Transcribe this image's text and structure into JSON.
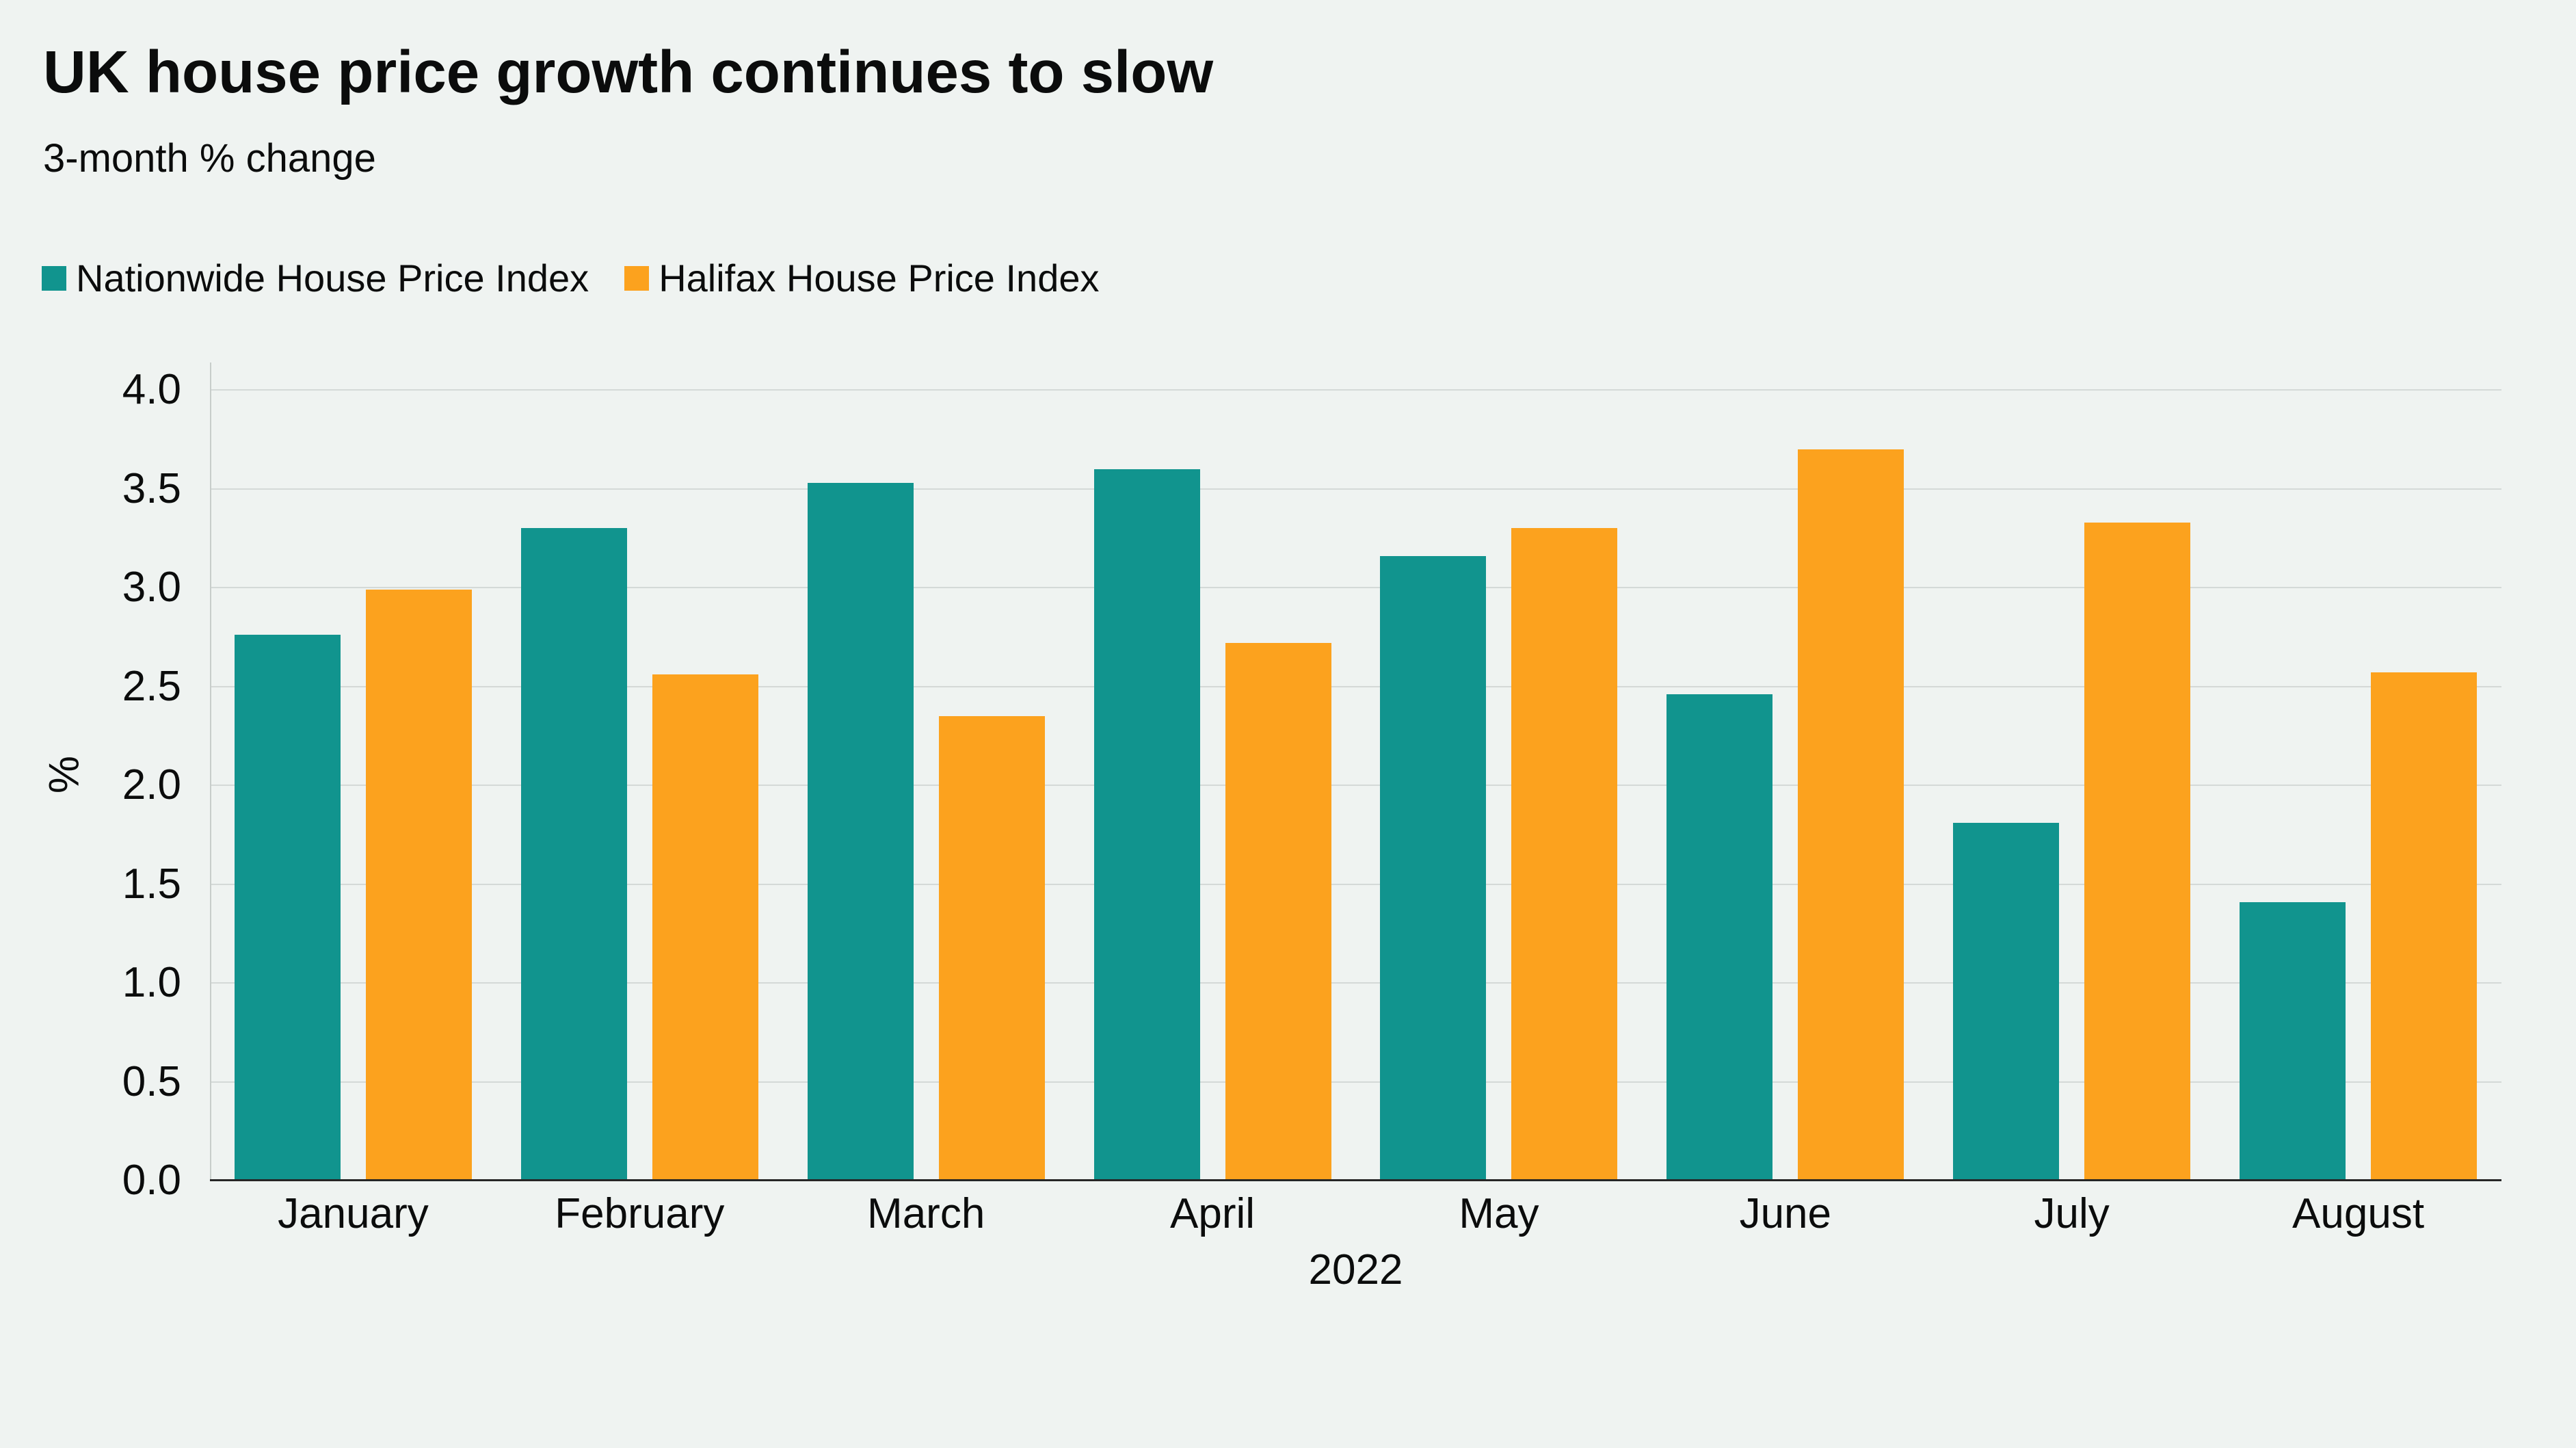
{
  "title": "UK house price growth continues to slow",
  "subtitle": "3-month % change",
  "chart_data": {
    "type": "bar",
    "title": "UK house price growth continues to slow",
    "subtitle": "3-month % change",
    "categories": [
      "January",
      "February",
      "March",
      "April",
      "May",
      "June",
      "July",
      "August"
    ],
    "x_axis_secondary_label": "2022",
    "series": [
      {
        "name": "Nationwide House Price Index",
        "color": "#11948e",
        "values": [
          2.76,
          3.3,
          3.53,
          3.6,
          3.16,
          2.46,
          1.81,
          1.41
        ]
      },
      {
        "name": "Halifax House Price Index",
        "color": "#fca21e",
        "values": [
          2.99,
          2.56,
          2.35,
          2.72,
          3.3,
          3.7,
          3.33,
          2.57
        ]
      }
    ],
    "xlabel": "2022",
    "ylabel": "%",
    "ylim": [
      0,
      4
    ],
    "ytick_step": 0.5,
    "yticks": [
      "0.0",
      "0.5",
      "1.0",
      "1.5",
      "2.0",
      "2.5",
      "3.0",
      "3.5",
      "4.0"
    ],
    "grid": true,
    "legend_position": "top-left"
  },
  "colors": {
    "background": "#eff3f1",
    "gridline": "#d4d9d7",
    "y_axis_line": "#c7cdca",
    "x_axis_line": "#262626",
    "text": "#0b0c0c",
    "nationwide": "#11948e",
    "halifax": "#fca21e"
  }
}
